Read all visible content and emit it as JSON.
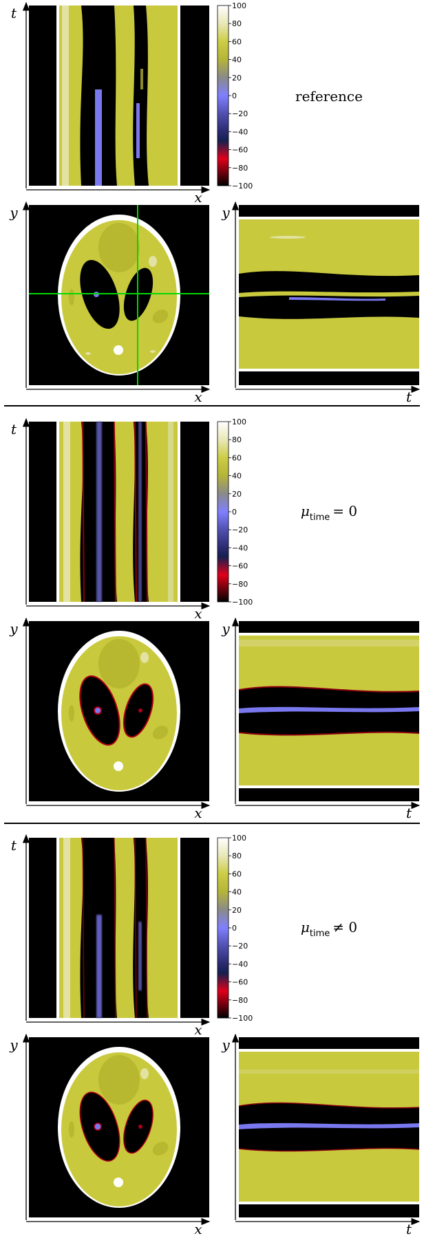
{
  "axis_labels": {
    "x": "x",
    "y": "y",
    "t": "t"
  },
  "colorbar": {
    "ticks": [
      "100",
      "80",
      "60",
      "40",
      "20",
      "0",
      "−20",
      "−40",
      "−60",
      "−80",
      "−100"
    ],
    "stops": [
      {
        "v": 100,
        "c": "#ffffff"
      },
      {
        "v": 80,
        "c": "#e8e8b8"
      },
      {
        "v": 60,
        "c": "#cdcd45"
      },
      {
        "v": 40,
        "c": "#b4b43a"
      },
      {
        "v": 20,
        "c": "#8a8a8a"
      },
      {
        "v": 0,
        "c": "#8080ff"
      },
      {
        "v": -20,
        "c": "#5050b0"
      },
      {
        "v": -40,
        "c": "#2a2a70"
      },
      {
        "v": -60,
        "c": "#152050"
      },
      {
        "v": -80,
        "c": "#e0001a"
      },
      {
        "v": -100,
        "c": "#000000"
      }
    ]
  },
  "colors": {
    "yellow": "#c9c93e",
    "dark_yellow": "#b3b32e",
    "light_yellow": "#e2e2a3",
    "black": "#000000",
    "blue": "#7a78ee",
    "red": "#b00015",
    "green": "#00d800"
  },
  "panels": [
    {
      "label": "reference",
      "has_crosshair": true,
      "artifacts": false
    },
    {
      "label_main": "μ",
      "label_sub": "time",
      "label_rel": "= 0",
      "has_crosshair": false,
      "artifacts": true
    },
    {
      "label_main": "μ",
      "label_sub": "time",
      "label_rel": "≠ 0",
      "has_crosshair": false,
      "artifacts": true
    }
  ]
}
